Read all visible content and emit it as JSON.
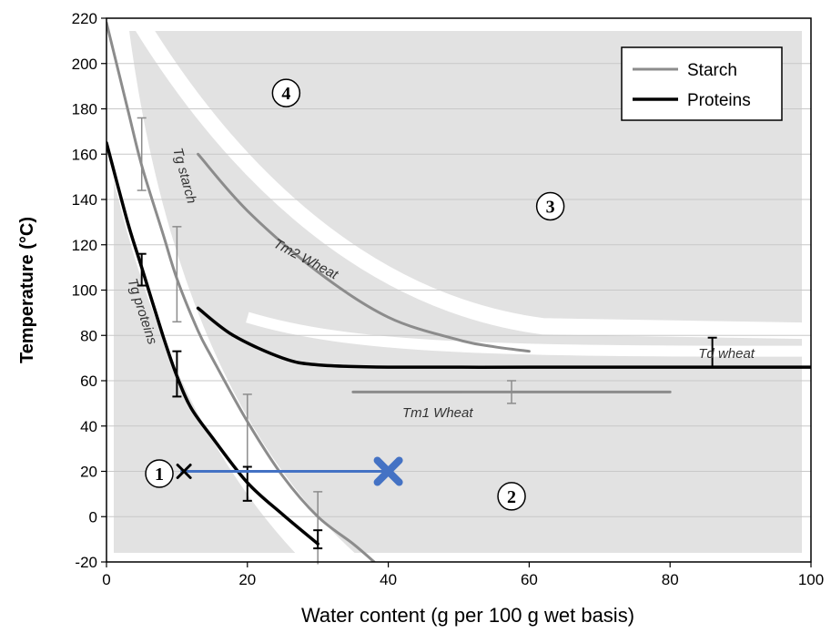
{
  "chart_data": {
    "type": "line",
    "title": "",
    "xlabel": "Water content (g per 100 g wet basis)",
    "ylabel": "Temperature (°C)",
    "xlim": [
      0,
      100
    ],
    "ylim": [
      -20,
      220
    ],
    "xticks": [
      0,
      20,
      40,
      60,
      80,
      100
    ],
    "yticks": [
      -20,
      0,
      20,
      40,
      60,
      80,
      100,
      120,
      140,
      160,
      180,
      200,
      220
    ],
    "grid": "horizontal",
    "legend": {
      "position": "top-right",
      "entries": [
        {
          "label": "Starch",
          "color": "#8c8c8c"
        },
        {
          "label": "Proteins",
          "color": "#000000"
        }
      ]
    },
    "series": [
      {
        "name": "Tg starch",
        "material": "Starch",
        "color": "#8c8c8c",
        "x": [
          0,
          3,
          5,
          8,
          10,
          13,
          15,
          20,
          25,
          30,
          35,
          38
        ],
        "y": [
          218,
          180,
          155,
          125,
          105,
          82,
          70,
          42,
          18,
          0,
          -12,
          -20
        ]
      },
      {
        "name": "Tg proteins",
        "material": "Proteins",
        "color": "#000000",
        "x": [
          0,
          3,
          5,
          8,
          10,
          12,
          15,
          20,
          25,
          30
        ],
        "y": [
          165,
          130,
          110,
          80,
          62,
          48,
          35,
          15,
          1,
          -12
        ]
      },
      {
        "name": "Tm2 Wheat",
        "material": "Starch",
        "color": "#8c8c8c",
        "x": [
          13,
          20,
          30,
          40,
          50,
          55,
          60
        ],
        "y": [
          160,
          135,
          108,
          88,
          78,
          75,
          73
        ]
      },
      {
        "name": "Td wheat",
        "material": "Proteins",
        "color": "#000000",
        "x": [
          13,
          18,
          25,
          30,
          40,
          60,
          80,
          100
        ],
        "y": [
          92,
          80,
          70,
          67,
          66,
          66,
          66,
          66
        ]
      },
      {
        "name": "Tm1 Wheat",
        "material": "Starch",
        "color": "#8c8c8c",
        "x": [
          35,
          80
        ],
        "y": [
          55,
          55
        ]
      }
    ],
    "error_bars": [
      {
        "x": 5,
        "low": 144,
        "high": 176,
        "color": "#8c8c8c"
      },
      {
        "x": 10,
        "low": 86,
        "high": 128,
        "color": "#8c8c8c"
      },
      {
        "x": 20,
        "low": 7,
        "high": 54,
        "color": "#8c8c8c"
      },
      {
        "x": 30,
        "low": -22,
        "high": 11,
        "color": "#8c8c8c"
      },
      {
        "x": 57.5,
        "low": 50,
        "high": 60,
        "color": "#8c8c8c"
      },
      {
        "x": 5,
        "low": 102,
        "high": 116,
        "color": "#000000"
      },
      {
        "x": 10,
        "low": 53,
        "high": 73,
        "color": "#000000"
      },
      {
        "x": 20,
        "low": 7,
        "high": 22,
        "color": "#000000"
      },
      {
        "x": 30,
        "low": -14,
        "high": -6,
        "color": "#000000"
      },
      {
        "x": 86,
        "low": 66,
        "high": 79,
        "color": "#000000"
      }
    ],
    "annotations": {
      "curve_labels": [
        {
          "text": "Tg starch",
          "x": 10.5,
          "y": 150,
          "rotate": 75
        },
        {
          "text": "Tg proteins",
          "x": 4.5,
          "y": 90,
          "rotate": 72
        },
        {
          "text": "Tm2 Wheat",
          "x": 28,
          "y": 112,
          "rotate": 28
        },
        {
          "text": "Tm1 Wheat",
          "x": 47,
          "y": 44,
          "rotate": 0
        },
        {
          "text": "Td wheat",
          "x": 88,
          "y": 70,
          "rotate": 0
        }
      ],
      "regions": [
        {
          "label": "1",
          "x": 7.5,
          "y": 19
        },
        {
          "label": "2",
          "x": 57.5,
          "y": 9
        },
        {
          "label": "3",
          "x": 63,
          "y": 137
        },
        {
          "label": "4",
          "x": 25.5,
          "y": 187
        }
      ],
      "arrow": {
        "x1": 10.5,
        "x2": 40,
        "y": 20,
        "color": "#4472c4"
      },
      "markers": [
        {
          "x": 11,
          "y": 20,
          "symbol": "x",
          "color": "#000000"
        },
        {
          "x": 40,
          "y": 20,
          "symbol": "x",
          "color": "#4472c4"
        }
      ]
    }
  }
}
